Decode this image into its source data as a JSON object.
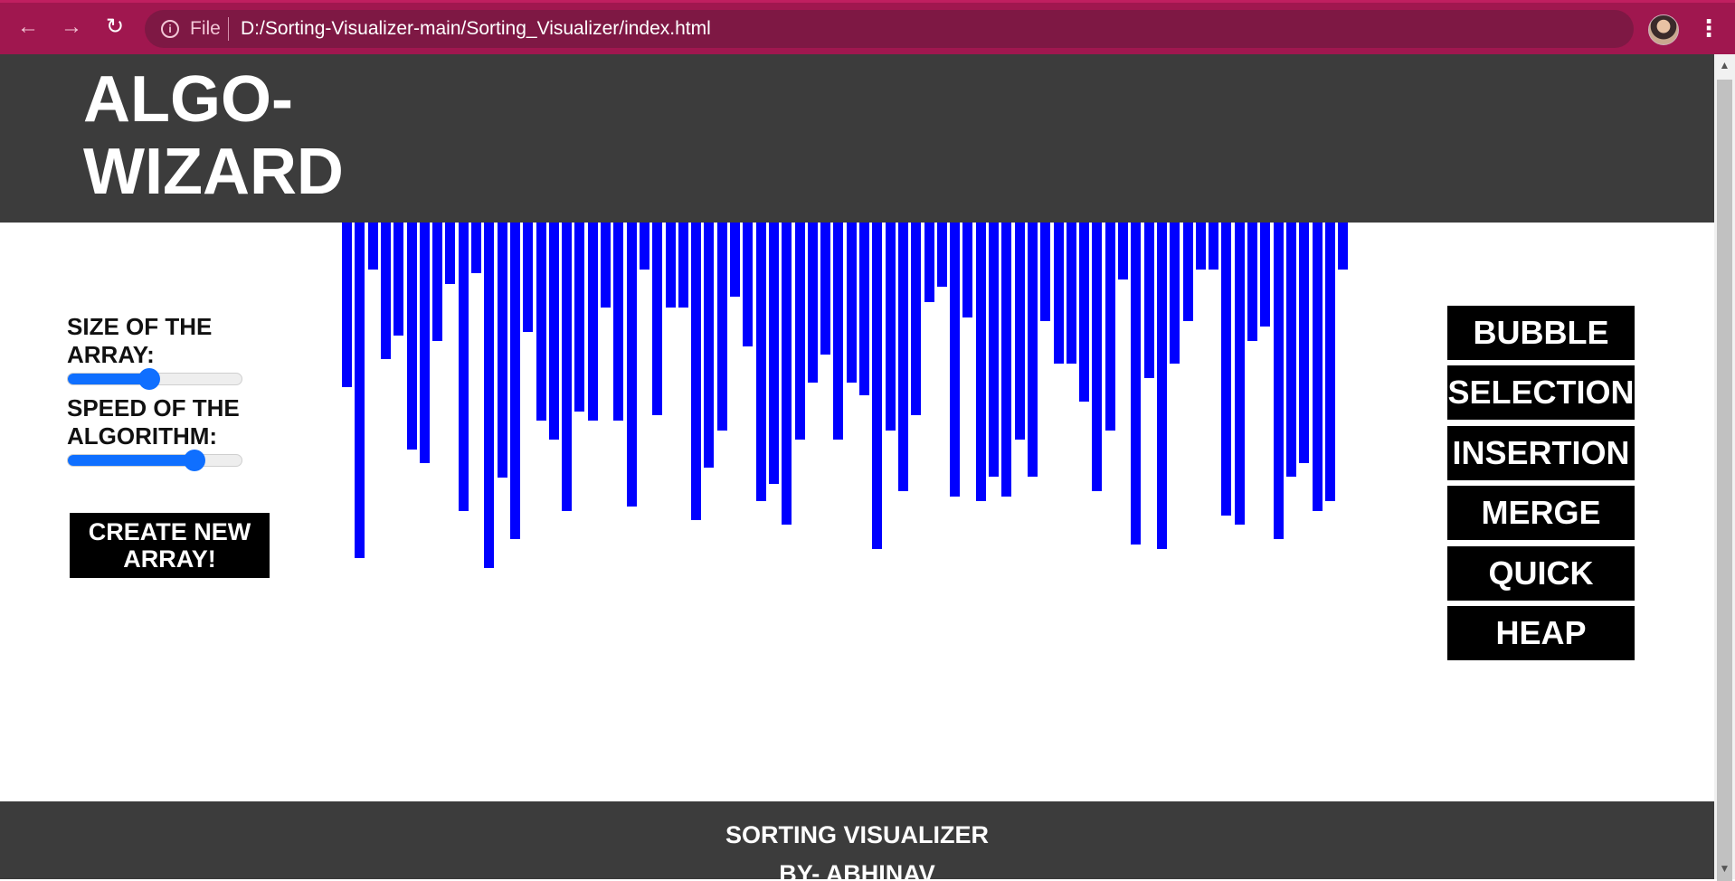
{
  "browser": {
    "scheme_label": "File",
    "url": "D:/Sorting-Visualizer-main/Sorting_Visualizer/index.html",
    "back_icon": "←",
    "forward_icon": "→",
    "reload_icon": "↻",
    "info_icon": "i",
    "star_icon": "☆",
    "menu_icon": "⋮"
  },
  "header": {
    "logo_line1": "ALGO-",
    "logo_line2": "WIZARD"
  },
  "controls": {
    "size_label": "SIZE OF THE ARRAY:",
    "size_value": 0.47,
    "speed_label": "SPEED OF THE ALGORITHM:",
    "speed_value": 0.73,
    "create_button": "CREATE NEW ARRAY!",
    "slider_color": "#0f6fff"
  },
  "algorithms": [
    "BUBBLE",
    "SELECTION",
    "INSERTION",
    "MERGE",
    "QUICK",
    "HEAP"
  ],
  "array_values": [
    182,
    371,
    52,
    151,
    125,
    251,
    266,
    131,
    68,
    319,
    56,
    382,
    282,
    350,
    121,
    219,
    240,
    319,
    209,
    219,
    94,
    219,
    314,
    52,
    213,
    94,
    94,
    329,
    271,
    230,
    82,
    137,
    308,
    289,
    334,
    240,
    177,
    146,
    240,
    177,
    191,
    361,
    230,
    297,
    213,
    88,
    71,
    303,
    105,
    308,
    281,
    303,
    240,
    281,
    109,
    156,
    156,
    198,
    297,
    230,
    63,
    356,
    172,
    361,
    156,
    109,
    52,
    52,
    324,
    334,
    131,
    115,
    350,
    281,
    266,
    319,
    308,
    52
  ],
  "bar_color": "#0000ff",
  "footer": {
    "title": "SORTING VISUALIZER",
    "byline": "BY- ABHINAV"
  }
}
